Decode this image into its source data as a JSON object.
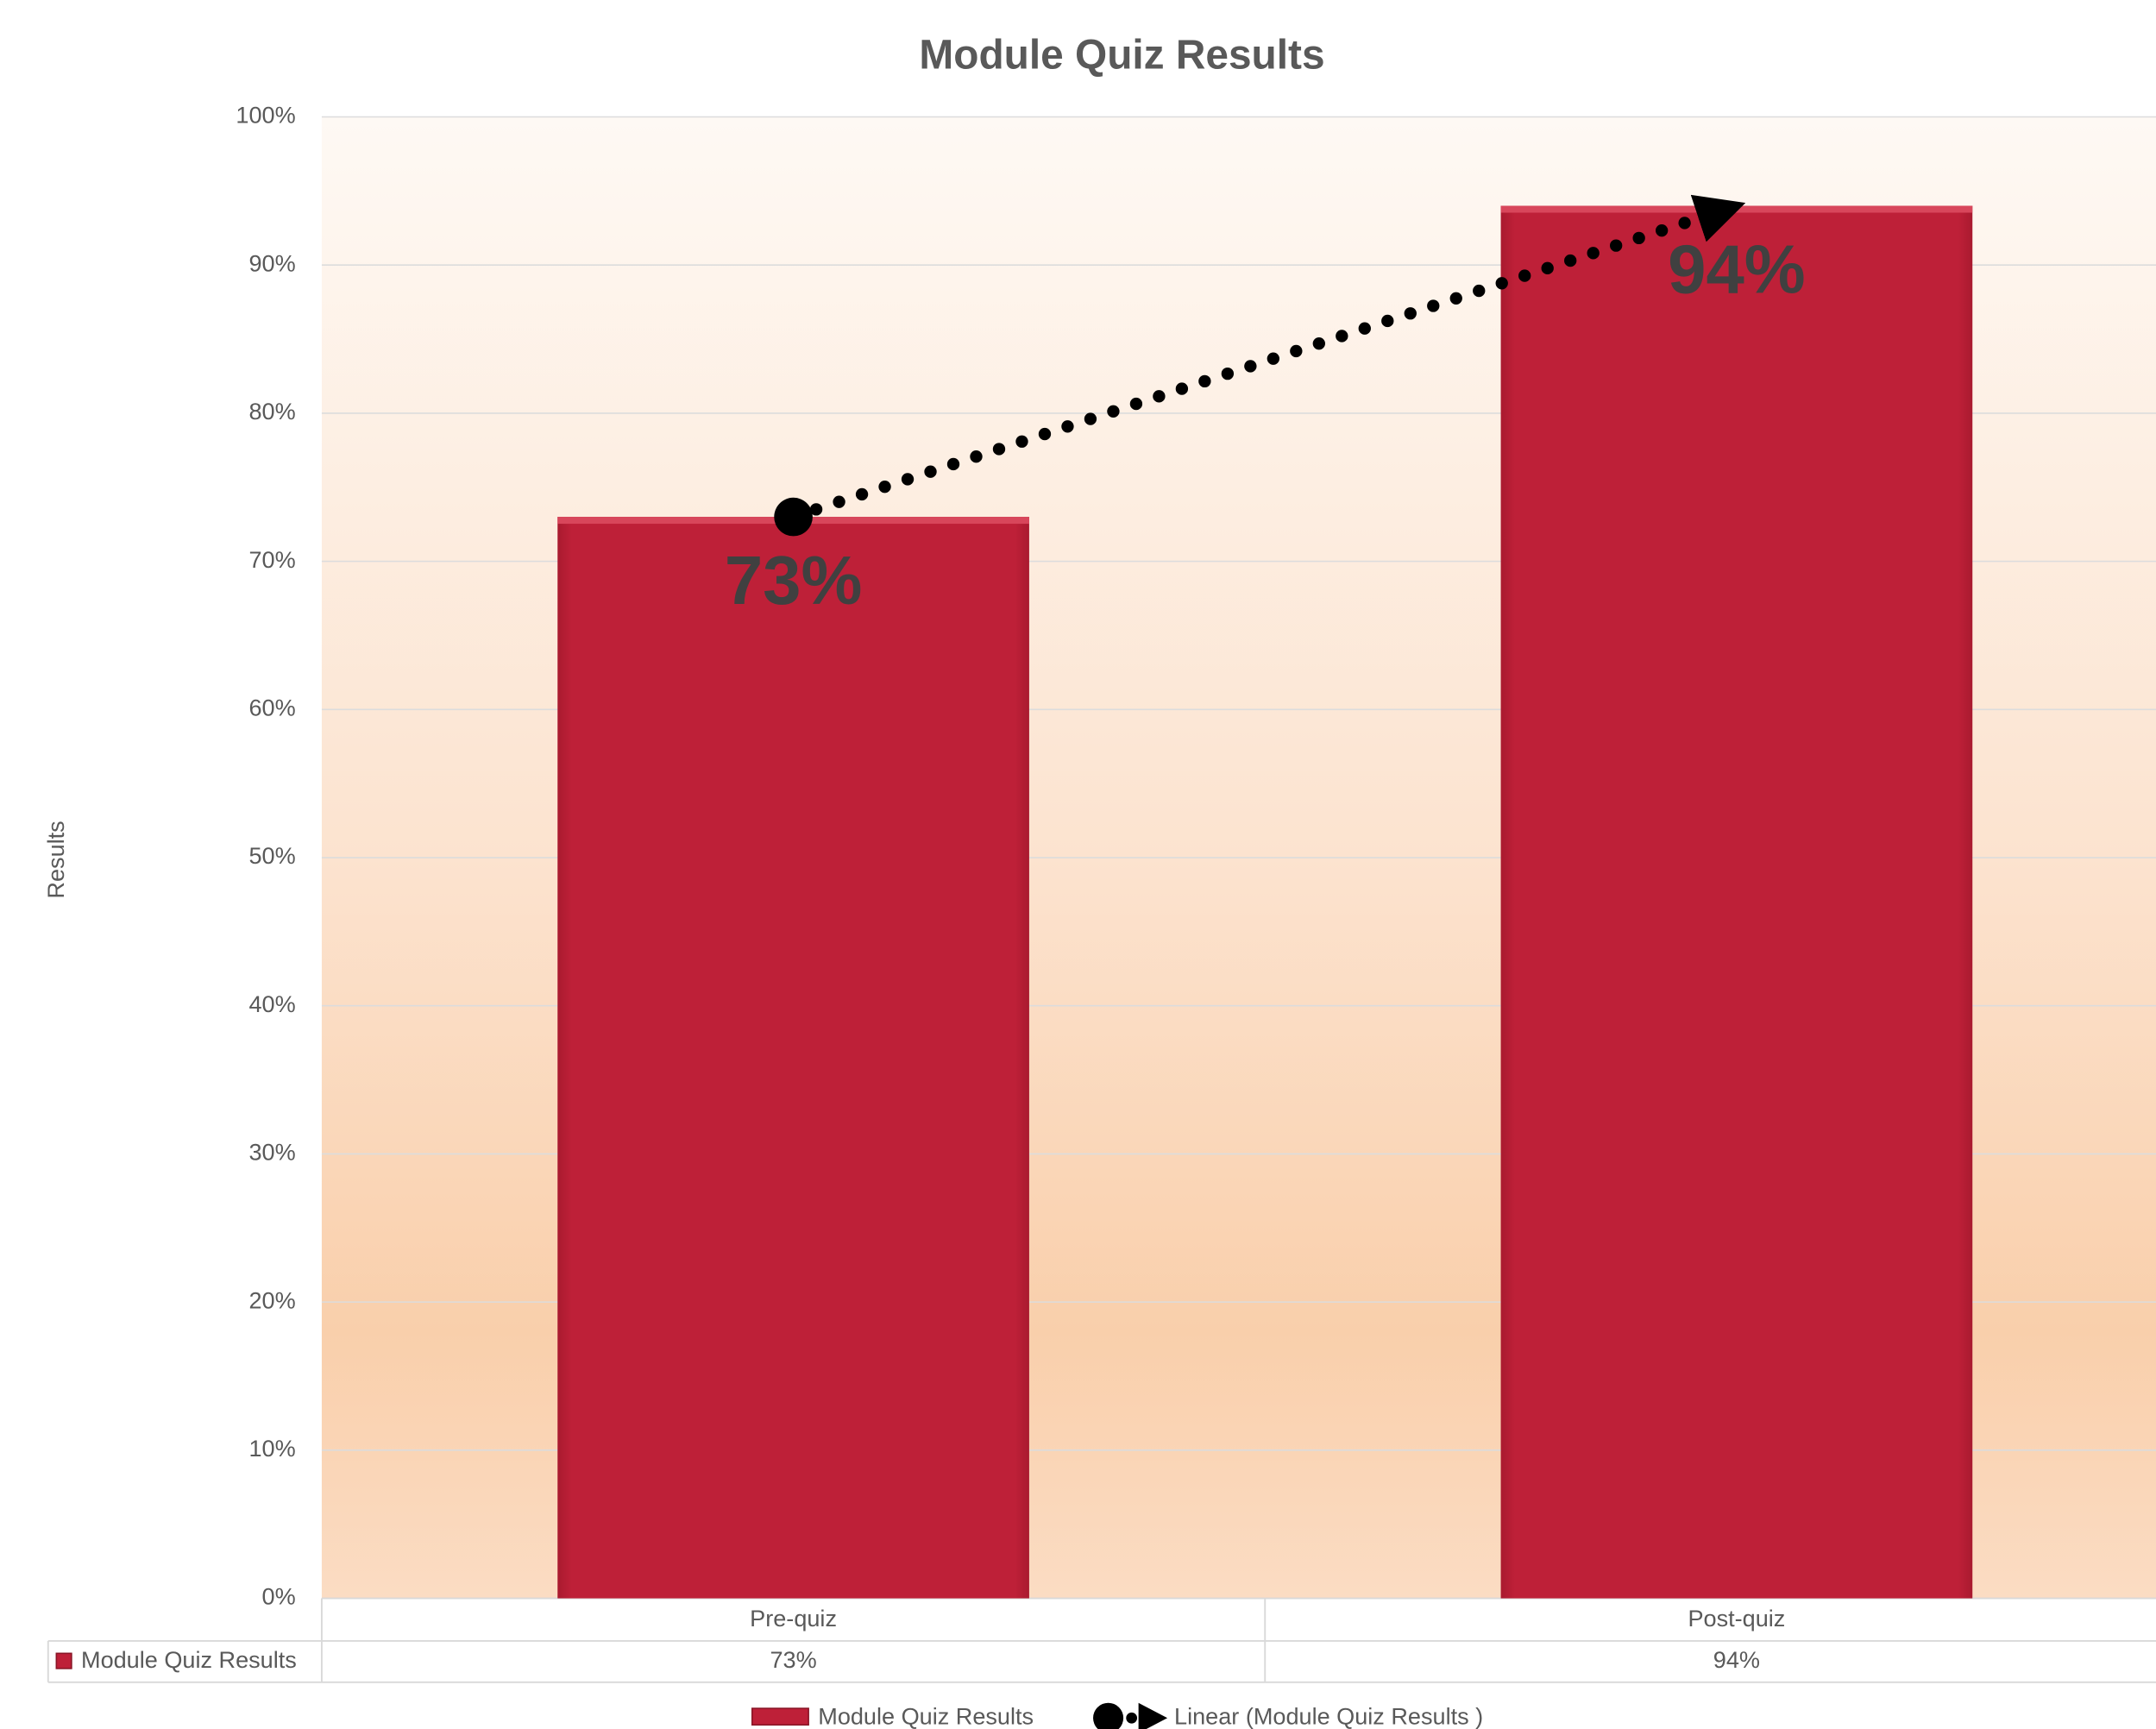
{
  "chart_data": {
    "type": "bar",
    "title": "Module Quiz Results",
    "y_axis_label": "Results",
    "categories": [
      "Pre-quiz",
      "Post-quiz"
    ],
    "series": [
      {
        "name": "Module Quiz Results",
        "color": "#be2038",
        "values": [
          73,
          94
        ],
        "value_labels": [
          "73%",
          "94%"
        ]
      }
    ],
    "trendline": {
      "name": "Linear (Module Quiz Results )",
      "color": "#000000"
    },
    "ylim": [
      0,
      100
    ],
    "yticks": [
      {
        "value": 0,
        "label": "0%"
      },
      {
        "value": 10,
        "label": "10%"
      },
      {
        "value": 20,
        "label": "20%"
      },
      {
        "value": 30,
        "label": "30%"
      },
      {
        "value": 40,
        "label": "40%"
      },
      {
        "value": 50,
        "label": "50%"
      },
      {
        "value": 60,
        "label": "60%"
      },
      {
        "value": 70,
        "label": "70%"
      },
      {
        "value": 80,
        "label": "80%"
      },
      {
        "value": 90,
        "label": "90%"
      },
      {
        "value": 100,
        "label": "100%"
      }
    ],
    "grid": true,
    "data_table": true,
    "legend": "bottom"
  }
}
